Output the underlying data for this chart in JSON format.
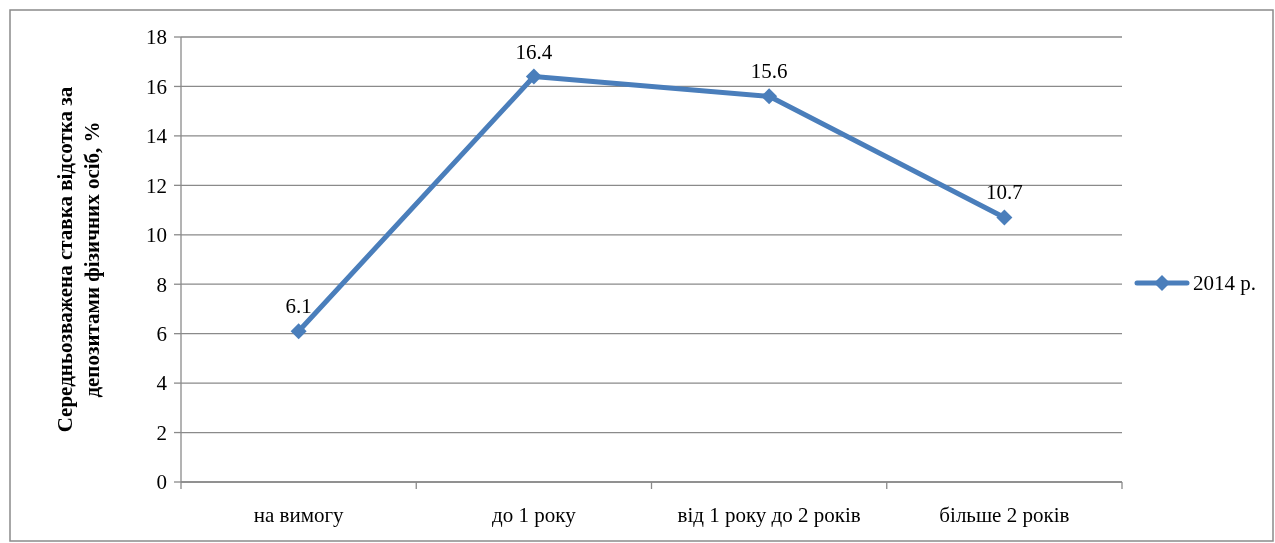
{
  "chart_data": {
    "type": "line",
    "ylabel": "Середньозважена ставка відсотка за депозитами фізичних осіб, %",
    "categories": [
      "на вимогу",
      "до 1 року",
      "від 1 року до 2 років",
      "більше 2 років"
    ],
    "series": [
      {
        "name": "2014 р.",
        "color": "#4a7ebb",
        "values": [
          6.1,
          16.4,
          15.6,
          10.7
        ]
      }
    ],
    "ylim": [
      0,
      18
    ],
    "yticks": [
      0,
      2,
      4,
      6,
      8,
      10,
      12,
      14,
      16,
      18
    ],
    "grid": "y",
    "legend": "right",
    "marker": "diamond",
    "line_style": "solid",
    "data_labels": true
  }
}
